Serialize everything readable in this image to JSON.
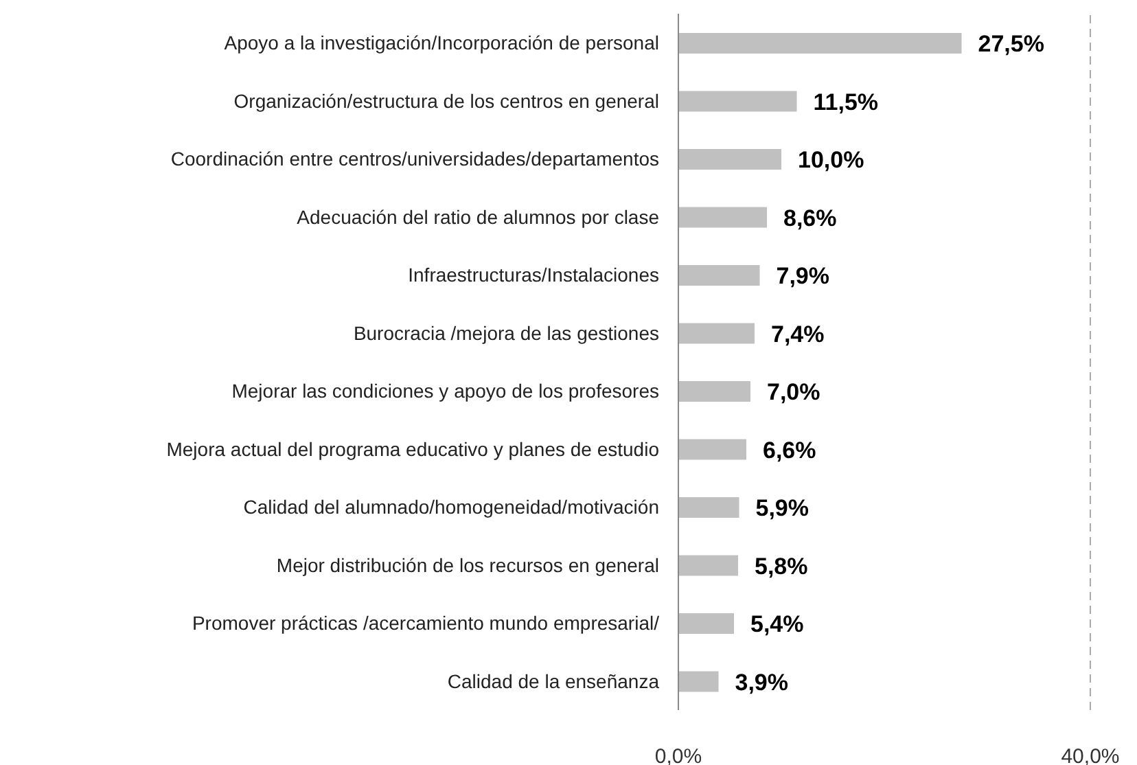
{
  "chart_data": {
    "type": "bar",
    "orientation": "horizontal",
    "categories": [
      "Apoyo a la investigación/Incorporación de personal",
      "Organización/estructura de los centros en general",
      "Coordinación entre centros/universidades/departamentos",
      "Adecuación del ratio de alumnos por clase",
      "Infraestructuras/Instalaciones",
      "Burocracia /mejora de las gestiones",
      "Mejorar las condiciones y apoyo de los profesores",
      "Mejora actual del programa educativo y planes de estudio",
      "Calidad del alumnado/homogeneidad/motivación",
      "Mejor distribución de los recursos en general",
      "Promover prácticas /acercamiento mundo empresarial/",
      "Calidad de la enseñanza"
    ],
    "values": [
      27.5,
      11.5,
      10.0,
      8.6,
      7.9,
      7.4,
      7.0,
      6.6,
      5.9,
      5.8,
      5.4,
      3.9
    ],
    "value_labels": [
      "27,5%",
      "11,5%",
      "10,0%",
      "8,6%",
      "7,9%",
      "7,4%",
      "7,0%",
      "6,6%",
      "5,9%",
      "5,8%",
      "5,4%",
      "3,9%"
    ],
    "color": "#c0c0c0",
    "xlim": [
      0,
      40
    ],
    "xticks": [
      {
        "value": 0,
        "label": "0,0%"
      },
      {
        "value": 40,
        "label": "40,0%"
      }
    ],
    "ref_lines": [
      {
        "axis": "x",
        "value": 40,
        "color": "#aaaaaa",
        "line_style": "dashed"
      }
    ]
  }
}
